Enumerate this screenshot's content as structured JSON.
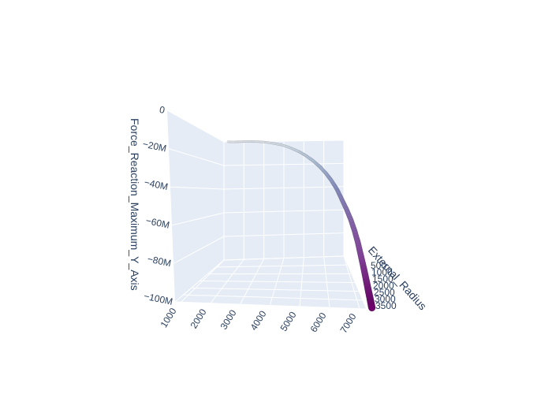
{
  "chart_data": {
    "type": "scatter3d",
    "title": "",
    "axes": {
      "x": {
        "label": "",
        "ticks": [
          "1000",
          "2000",
          "3000",
          "4000",
          "5000",
          "6000",
          "7000"
        ],
        "range": [
          1000,
          7000
        ]
      },
      "y": {
        "label": "External_Radius",
        "ticks": [
          "500",
          "1000",
          "1500",
          "2000",
          "2500",
          "3000",
          "3500"
        ],
        "range": [
          500,
          3500
        ]
      },
      "z": {
        "label": "Force_Reaction_Maximum_Y_Axis",
        "ticks": [
          "0",
          "−20M",
          "−40M",
          "−60M",
          "−80M",
          "−100M"
        ],
        "range": [
          -100000000,
          0
        ]
      }
    },
    "colorscale": [
      "#f7fcfd",
      "#bfd3e6",
      "#8c96c6",
      "#8c6bb1",
      "#88419d",
      "#6e016b"
    ],
    "marker_color_by": "Force_Reaction_Maximum_Y_Axis",
    "points": [
      {
        "x": 1200,
        "y": 500,
        "z": 0
      },
      {
        "x": 1600,
        "y": 500,
        "z": -150000
      },
      {
        "x": 2000,
        "y": 550,
        "z": -400000
      },
      {
        "x": 2400,
        "y": 600,
        "z": -800000
      },
      {
        "x": 2800,
        "y": 650,
        "z": -1500000
      },
      {
        "x": 3200,
        "y": 700,
        "z": -2500000
      },
      {
        "x": 3600,
        "y": 750,
        "z": -4000000
      },
      {
        "x": 4000,
        "y": 850,
        "z": -6000000
      },
      {
        "x": 4400,
        "y": 950,
        "z": -9000000
      },
      {
        "x": 4800,
        "y": 1050,
        "z": -12500000
      },
      {
        "x": 5100,
        "y": 1150,
        "z": -16000000
      },
      {
        "x": 5400,
        "y": 1250,
        "z": -20000000
      },
      {
        "x": 5700,
        "y": 1400,
        "z": -25000000
      },
      {
        "x": 5950,
        "y": 1500,
        "z": -30000000
      },
      {
        "x": 6150,
        "y": 1650,
        "z": -35000000
      },
      {
        "x": 6350,
        "y": 1800,
        "z": -41000000
      },
      {
        "x": 6500,
        "y": 1950,
        "z": -47000000
      },
      {
        "x": 6650,
        "y": 2100,
        "z": -53000000
      },
      {
        "x": 6780,
        "y": 2250,
        "z": -59000000
      },
      {
        "x": 6880,
        "y": 2400,
        "z": -65000000
      },
      {
        "x": 6960,
        "y": 2550,
        "z": -71000000
      },
      {
        "x": 7020,
        "y": 2700,
        "z": -77000000
      },
      {
        "x": 7080,
        "y": 2850,
        "z": -83000000
      },
      {
        "x": 7120,
        "y": 3000,
        "z": -88000000
      },
      {
        "x": 7160,
        "y": 3150,
        "z": -93000000
      },
      {
        "x": 7190,
        "y": 3300,
        "z": -97000000
      },
      {
        "x": 7210,
        "y": 3420,
        "z": -100000000
      }
    ]
  }
}
